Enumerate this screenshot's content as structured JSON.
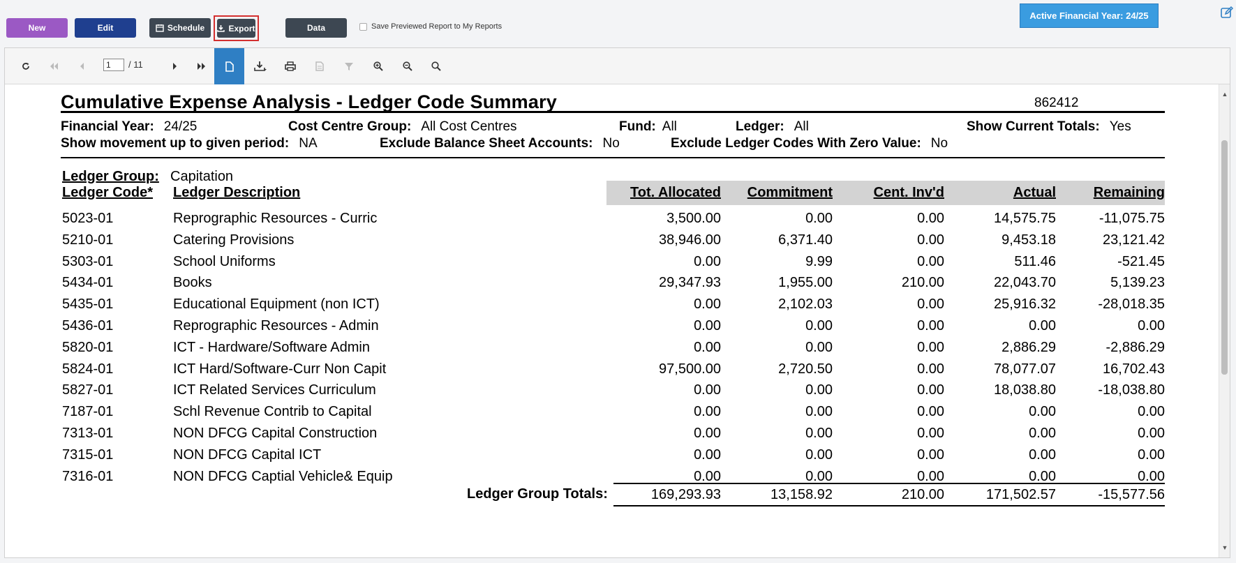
{
  "topbar": {
    "new_label": "New",
    "edit_label": "Edit",
    "schedule_label": "Schedule",
    "export_label": "Export",
    "data_label": "Data",
    "save_report_label": "Save Previewed Report to My Reports",
    "active_year_label": "Active Financial Year: 24/25"
  },
  "toolbar": {
    "current_page": "1",
    "page_total": "/ 11"
  },
  "report": {
    "title": "Cumulative Expense Analysis - Ledger Code Summary",
    "id": "862412",
    "meta": {
      "financial_year_label": "Financial Year:",
      "financial_year_value": "24/25",
      "cost_centre_group_label": "Cost Centre Group:",
      "cost_centre_group_value": "All Cost Centres",
      "fund_label": "Fund:",
      "fund_value": "All",
      "ledger_label": "Ledger:",
      "ledger_value": "All",
      "show_current_totals_label": "Show Current Totals:",
      "show_current_totals_value": "Yes",
      "show_movement_label": "Show movement up to given period:",
      "show_movement_value": "NA",
      "exclude_bs_label": "Exclude Balance Sheet Accounts:",
      "exclude_bs_value": "No",
      "exclude_zero_label": "Exclude Ledger Codes With Zero Value:",
      "exclude_zero_value": "No"
    },
    "ledger_group_label": "Ledger Group:",
    "ledger_group_value": "Capitation",
    "columns": {
      "code": "Ledger Code*",
      "description": "Ledger Description",
      "allocated": "Tot. Allocated",
      "commitment": "Commitment",
      "cent_invd": "Cent. Inv'd",
      "actual": "Actual",
      "remaining": "Remaining"
    },
    "rows": [
      {
        "code": "5023-01",
        "description": "Reprographic Resources - Curric",
        "allocated": "3,500.00",
        "commitment": "0.00",
        "cent_invd": "0.00",
        "actual": "14,575.75",
        "remaining": "-11,075.75"
      },
      {
        "code": "5210-01",
        "description": "Catering Provisions",
        "allocated": "38,946.00",
        "commitment": "6,371.40",
        "cent_invd": "0.00",
        "actual": "9,453.18",
        "remaining": "23,121.42"
      },
      {
        "code": "5303-01",
        "description": "School Uniforms",
        "allocated": "0.00",
        "commitment": "9.99",
        "cent_invd": "0.00",
        "actual": "511.46",
        "remaining": "-521.45"
      },
      {
        "code": "5434-01",
        "description": "Books",
        "allocated": "29,347.93",
        "commitment": "1,955.00",
        "cent_invd": "210.00",
        "actual": "22,043.70",
        "remaining": "5,139.23"
      },
      {
        "code": "5435-01",
        "description": "Educational Equipment (non ICT)",
        "allocated": "0.00",
        "commitment": "2,102.03",
        "cent_invd": "0.00",
        "actual": "25,916.32",
        "remaining": "-28,018.35"
      },
      {
        "code": "5436-01",
        "description": "Reprographic Resources - Admin",
        "allocated": "0.00",
        "commitment": "0.00",
        "cent_invd": "0.00",
        "actual": "0.00",
        "remaining": "0.00"
      },
      {
        "code": "5820-01",
        "description": "ICT - Hardware/Software Admin",
        "allocated": "0.00",
        "commitment": "0.00",
        "cent_invd": "0.00",
        "actual": "2,886.29",
        "remaining": "-2,886.29"
      },
      {
        "code": "5824-01",
        "description": "ICT Hard/Software-Curr Non Capit",
        "allocated": "97,500.00",
        "commitment": "2,720.50",
        "cent_invd": "0.00",
        "actual": "78,077.07",
        "remaining": "16,702.43"
      },
      {
        "code": "5827-01",
        "description": "ICT Related Services Curriculum",
        "allocated": "0.00",
        "commitment": "0.00",
        "cent_invd": "0.00",
        "actual": "18,038.80",
        "remaining": "-18,038.80"
      },
      {
        "code": "7187-01",
        "description": "Schl Revenue Contrib to Capital",
        "allocated": "0.00",
        "commitment": "0.00",
        "cent_invd": "0.00",
        "actual": "0.00",
        "remaining": "0.00"
      },
      {
        "code": "7313-01",
        "description": "NON DFCG Capital Construction",
        "allocated": "0.00",
        "commitment": "0.00",
        "cent_invd": "0.00",
        "actual": "0.00",
        "remaining": "0.00"
      },
      {
        "code": "7315-01",
        "description": "NON DFCG Capital ICT",
        "allocated": "0.00",
        "commitment": "0.00",
        "cent_invd": "0.00",
        "actual": "0.00",
        "remaining": "0.00"
      },
      {
        "code": "7316-01",
        "description": "NON DFCG Captial Vehicle& Equip",
        "allocated": "0.00",
        "commitment": "0.00",
        "cent_invd": "0.00",
        "actual": "0.00",
        "remaining": "0.00"
      }
    ],
    "totals": {
      "label": "Ledger Group Totals:",
      "allocated": "169,293.93",
      "commitment": "13,158.92",
      "cent_invd": "210.00",
      "actual": "171,502.57",
      "remaining": "-15,577.56"
    }
  },
  "colors": {
    "new_button": "#9b59c4",
    "edit_button": "#1f3f8f",
    "dark_button": "#3d4752",
    "active_year": "#3a9ce0",
    "export_highlight": "#d32f2f",
    "toolbar_active": "#2f7fc4",
    "header_band": "#d3d3d3"
  },
  "icons": {
    "schedule": "calendar-icon",
    "export": "download-icon",
    "corner": "edit-icon",
    "toolbar": [
      "refresh-icon",
      "first-page-icon",
      "prev-page-icon",
      "next-page-icon",
      "last-page-icon",
      "single-page-icon",
      "download-icon",
      "print-icon",
      "document-icon",
      "filter-icon",
      "zoom-in-icon",
      "zoom-out-icon",
      "zoom-reset-icon"
    ]
  }
}
